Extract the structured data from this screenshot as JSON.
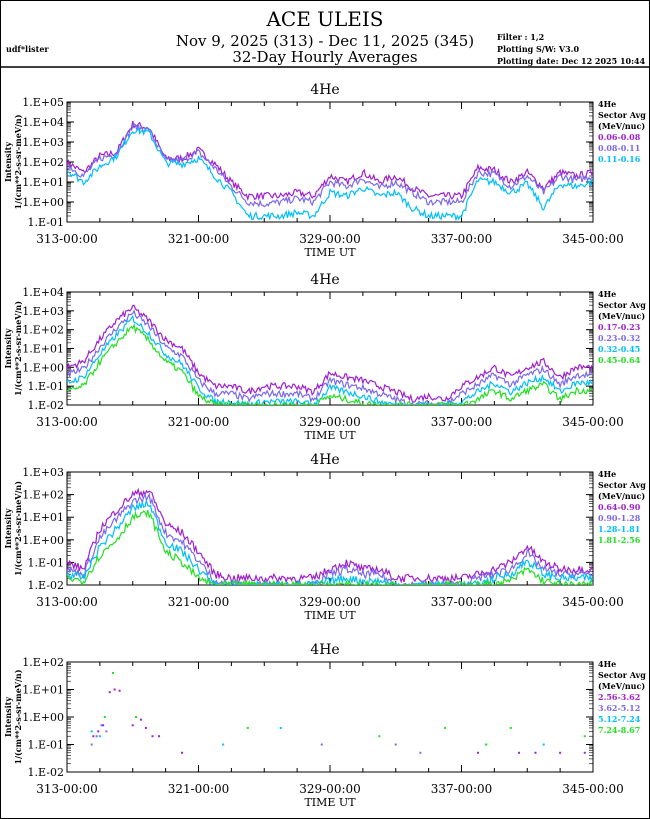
{
  "header": {
    "title": "ACE ULEIS",
    "date_range": "Nov  9, 2025 (313) - Dec 11, 2025 (345)",
    "subtitle": "32-Day Hourly Averages",
    "user": "udf*lister",
    "filter": "Filter : 1,2",
    "software": "Plotting S/W: V3.0",
    "plot_date": "Plotting date: Dec 12 2025 10:44"
  },
  "colors": {
    "purple": "#a020d0",
    "blue": "#7b68ee",
    "cyan": "#00bfff",
    "green": "#22e022"
  },
  "chart_data": [
    {
      "type": "line",
      "title": "4He",
      "xlabel": "TIME UT",
      "ylabel": "Intensity",
      "ylabel2": "1/(cm**2-s-sr-meV/n)",
      "xlim": [
        313,
        345
      ],
      "xticks": [
        "313-00:00",
        "321-00:00",
        "329-00:00",
        "337-00:00",
        "345-00:00"
      ],
      "ylim": [
        0.1,
        100000
      ],
      "yticks": [
        "1.E-01",
        "1.E+00",
        "1.E+01",
        "1.E+02",
        "1.E+03",
        "1.E+04",
        "1.E+05"
      ],
      "legend": {
        "species": "4He",
        "label1": "Sector Avg",
        "label2": "(MeV/nuc)",
        "position": "right"
      },
      "x": [
        313,
        314,
        315,
        316,
        317,
        318,
        319,
        320,
        321,
        322,
        323,
        324,
        325,
        326,
        327,
        328,
        329,
        330,
        331,
        332,
        333,
        334,
        335,
        336,
        337,
        338,
        339,
        340,
        341,
        342,
        343,
        344,
        345
      ],
      "series": [
        {
          "name": "0.06-0.08",
          "color": "purple",
          "values": [
            100,
            30,
            200,
            300,
            8000,
            5000,
            150,
            150,
            400,
            80,
            10,
            2,
            2,
            2,
            3,
            2,
            20,
            10,
            30,
            10,
            20,
            5,
            2,
            2,
            2,
            50,
            40,
            10,
            30,
            5,
            30,
            20,
            30
          ]
        },
        {
          "name": "0.08-0.11",
          "color": "blue",
          "values": [
            70,
            20,
            150,
            250,
            6000,
            4000,
            120,
            120,
            300,
            50,
            6,
            1,
            0.8,
            1,
            1.5,
            1,
            10,
            6,
            15,
            5,
            10,
            3,
            1,
            1,
            1,
            30,
            25,
            6,
            20,
            3,
            20,
            12,
            20
          ]
        },
        {
          "name": "0.11-0.16",
          "color": "cyan",
          "values": [
            40,
            10,
            60,
            200,
            4000,
            3000,
            90,
            80,
            150,
            20,
            3,
            0.2,
            0.2,
            0.2,
            0.3,
            0.2,
            3,
            2,
            5,
            2,
            3,
            0.5,
            0.2,
            0.2,
            0.2,
            12,
            10,
            3,
            8,
            0.5,
            8,
            6,
            10
          ]
        }
      ]
    },
    {
      "type": "line",
      "title": "4He",
      "xlabel": "TIME UT",
      "ylabel": "Intensity",
      "ylabel2": "1/(cm**2-s-sr-meV/n)",
      "xlim": [
        313,
        345
      ],
      "xticks": [
        "313-00:00",
        "321-00:00",
        "329-00:00",
        "337-00:00",
        "345-00:00"
      ],
      "ylim": [
        0.01,
        10000
      ],
      "yticks": [
        "1.E-02",
        "1.E-01",
        "1.E+00",
        "1.E+01",
        "1.E+02",
        "1.E+03",
        "1.E+04"
      ],
      "legend": {
        "species": "4He",
        "label1": "Sector Avg",
        "label2": "(MeV/nuc)",
        "position": "right"
      },
      "x": [
        313,
        314,
        315,
        316,
        317,
        318,
        319,
        320,
        321,
        322,
        323,
        324,
        325,
        326,
        327,
        328,
        329,
        330,
        331,
        332,
        333,
        334,
        335,
        336,
        337,
        338,
        339,
        340,
        341,
        342,
        343,
        344,
        345
      ],
      "series": [
        {
          "name": "0.17-0.23",
          "color": "purple",
          "values": [
            1,
            2,
            30,
            300,
            1500,
            300,
            30,
            10,
            0.5,
            0.1,
            0.1,
            0.05,
            0.1,
            0.1,
            0.1,
            0.05,
            0.5,
            0.3,
            0.2,
            0.1,
            0.05,
            0.02,
            0.03,
            0.02,
            0.1,
            0.3,
            1,
            0.3,
            1,
            2,
            0.3,
            1,
            1
          ]
        },
        {
          "name": "0.23-0.32",
          "color": "blue",
          "values": [
            0.4,
            0.8,
            12,
            120,
            800,
            150,
            12,
            4,
            0.2,
            0.04,
            0.04,
            0.02,
            0.04,
            0.04,
            0.04,
            0.02,
            0.2,
            0.12,
            0.08,
            0.04,
            0.02,
            0.01,
            0.012,
            0.01,
            0.04,
            0.12,
            0.4,
            0.12,
            0.4,
            0.8,
            0.12,
            0.4,
            0.4
          ]
        },
        {
          "name": "0.32-0.45",
          "color": "cyan",
          "values": [
            0.15,
            0.3,
            5,
            50,
            400,
            60,
            5,
            1.5,
            0.08,
            0.015,
            0.015,
            0.01,
            0.015,
            0.015,
            0.015,
            0.01,
            0.08,
            0.05,
            0.03,
            0.015,
            0.01,
            0.01,
            0.01,
            0.01,
            0.015,
            0.05,
            0.15,
            0.05,
            0.15,
            0.3,
            0.05,
            0.15,
            0.15
          ]
        },
        {
          "name": "0.45-0.64",
          "color": "green",
          "values": [
            0.05,
            0.1,
            2,
            20,
            150,
            25,
            2,
            0.6,
            0.03,
            0.01,
            0.01,
            0.01,
            0.01,
            0.01,
            0.01,
            0.01,
            0.03,
            0.02,
            0.012,
            0.01,
            0.01,
            0.01,
            0.01,
            0.01,
            0.01,
            0.02,
            0.06,
            0.02,
            0.06,
            0.12,
            0.02,
            0.06,
            0.06
          ]
        }
      ]
    },
    {
      "type": "line",
      "title": "4He",
      "xlabel": "TIME UT",
      "ylabel": "Intensity",
      "ylabel2": "1/(cm**2-s-sr-meV/n)",
      "xlim": [
        313,
        345
      ],
      "xticks": [
        "313-00:00",
        "321-00:00",
        "329-00:00",
        "337-00:00",
        "345-00:00"
      ],
      "ylim": [
        0.01,
        1000
      ],
      "yticks": [
        "1.E-02",
        "1.E-01",
        "1.E+00",
        "1.E+01",
        "1.E+02",
        "1.E+03"
      ],
      "legend": {
        "species": "4He",
        "label1": "Sector Avg",
        "label2": "(MeV/nuc)",
        "position": "right"
      },
      "x": [
        313,
        314,
        315,
        316,
        317,
        318,
        319,
        320,
        321,
        322,
        323,
        324,
        325,
        326,
        327,
        328,
        329,
        330,
        331,
        332,
        333,
        334,
        335,
        336,
        337,
        338,
        339,
        340,
        341,
        342,
        343,
        344,
        345
      ],
      "series": [
        {
          "name": "0.64-0.90",
          "color": "purple",
          "values": [
            0.1,
            0.05,
            3,
            20,
            100,
            150,
            5,
            2,
            0.3,
            0.03,
            0.02,
            0.02,
            0.02,
            0.02,
            0.02,
            0.02,
            0.05,
            0.1,
            0.05,
            0.05,
            0.02,
            0.02,
            0.02,
            0.02,
            0.02,
            0.03,
            0.05,
            0.1,
            0.5,
            0.1,
            0.05,
            0.05,
            0.05
          ]
        },
        {
          "name": "0.90-1.28",
          "color": "blue",
          "values": [
            0.05,
            0.03,
            1.2,
            8,
            50,
            80,
            2,
            0.8,
            0.12,
            0.015,
            0.01,
            0.01,
            0.01,
            0.01,
            0.01,
            0.01,
            0.03,
            0.05,
            0.03,
            0.03,
            0.01,
            0.01,
            0.01,
            0.01,
            0.01,
            0.02,
            0.03,
            0.05,
            0.25,
            0.05,
            0.03,
            0.03,
            0.03
          ]
        },
        {
          "name": "1.28-1.81",
          "color": "cyan",
          "values": [
            0.03,
            0.02,
            0.5,
            3,
            25,
            40,
            0.8,
            0.3,
            0.05,
            0.01,
            0.01,
            0.01,
            0.01,
            0.01,
            0.01,
            0.01,
            0.015,
            0.02,
            0.015,
            0.015,
            0.01,
            0.01,
            0.01,
            0.01,
            0.01,
            0.01,
            0.02,
            0.03,
            0.12,
            0.03,
            0.02,
            0.02,
            0.02
          ]
        },
        {
          "name": "1.81-2.56",
          "color": "green",
          "values": [
            0.02,
            0.015,
            0.2,
            1,
            10,
            15,
            0.3,
            0.1,
            0.02,
            0.01,
            0.01,
            0.01,
            0.01,
            0.01,
            0.01,
            0.01,
            0.01,
            0.01,
            0.01,
            0.01,
            0.01,
            0.01,
            0.01,
            0.01,
            0.01,
            0.01,
            0.01,
            0.015,
            0.05,
            0.015,
            0.01,
            0.01,
            0.01
          ]
        }
      ]
    },
    {
      "type": "scatter",
      "title": "4He",
      "xlabel": "TIME UT",
      "ylabel": "Intensity",
      "ylabel2": "1/(cm**2-s-sr-meV/n)",
      "xlim": [
        313,
        345
      ],
      "xticks": [
        "313-00:00",
        "321-00:00",
        "329-00:00",
        "337-00:00",
        "345-00:00"
      ],
      "ylim": [
        0.01,
        100
      ],
      "yticks": [
        "1.E-02",
        "1.E-01",
        "1.E+00",
        "1.E+01",
        "1.E+02"
      ],
      "legend": {
        "species": "4He",
        "label1": "Sector Avg",
        "label2": "(MeV/nuc)",
        "position": "right"
      },
      "series": [
        {
          "name": "2.56-3.62",
          "color": "purple",
          "points": [
            [
              314.6,
              0.2
            ],
            [
              314.9,
              0.3
            ],
            [
              315.2,
              0.5
            ],
            [
              315.6,
              8
            ],
            [
              315.9,
              10
            ],
            [
              316.2,
              9
            ],
            [
              317.0,
              0.5
            ],
            [
              317.5,
              0.8
            ],
            [
              317.8,
              0.4
            ],
            [
              318.2,
              0.2
            ],
            [
              318.6,
              0.2
            ],
            [
              320.0,
              0.05
            ],
            [
              338.0,
              0.05
            ],
            [
              340.5,
              0.05
            ],
            [
              341.5,
              0.05
            ],
            [
              343.0,
              0.05
            ],
            [
              344.5,
              0.05
            ]
          ]
        },
        {
          "name": "3.62-5.12",
          "color": "blue",
          "points": [
            [
              314.5,
              0.1
            ],
            [
              314.8,
              0.2
            ],
            [
              315.1,
              0.5
            ],
            [
              315.4,
              0.3
            ],
            [
              328.5,
              0.1
            ],
            [
              333.0,
              0.1
            ],
            [
              334.5,
              0.05
            ]
          ]
        },
        {
          "name": "5.12-7.24",
          "color": "cyan",
          "points": [
            [
              314.5,
              0.3
            ],
            [
              315.0,
              0.2
            ],
            [
              322.5,
              0.1
            ],
            [
              326.0,
              0.4
            ],
            [
              338.5,
              0.1
            ],
            [
              342.0,
              0.1
            ]
          ]
        },
        {
          "name": "7.24-8.67",
          "color": "green",
          "points": [
            [
              315.3,
              1
            ],
            [
              315.8,
              40
            ],
            [
              317.2,
              1
            ],
            [
              324.0,
              0.4
            ],
            [
              332.0,
              0.2
            ],
            [
              336.0,
              0.4
            ],
            [
              338.5,
              0.1
            ],
            [
              340.0,
              0.4
            ],
            [
              344.5,
              0.2
            ]
          ]
        }
      ]
    }
  ]
}
